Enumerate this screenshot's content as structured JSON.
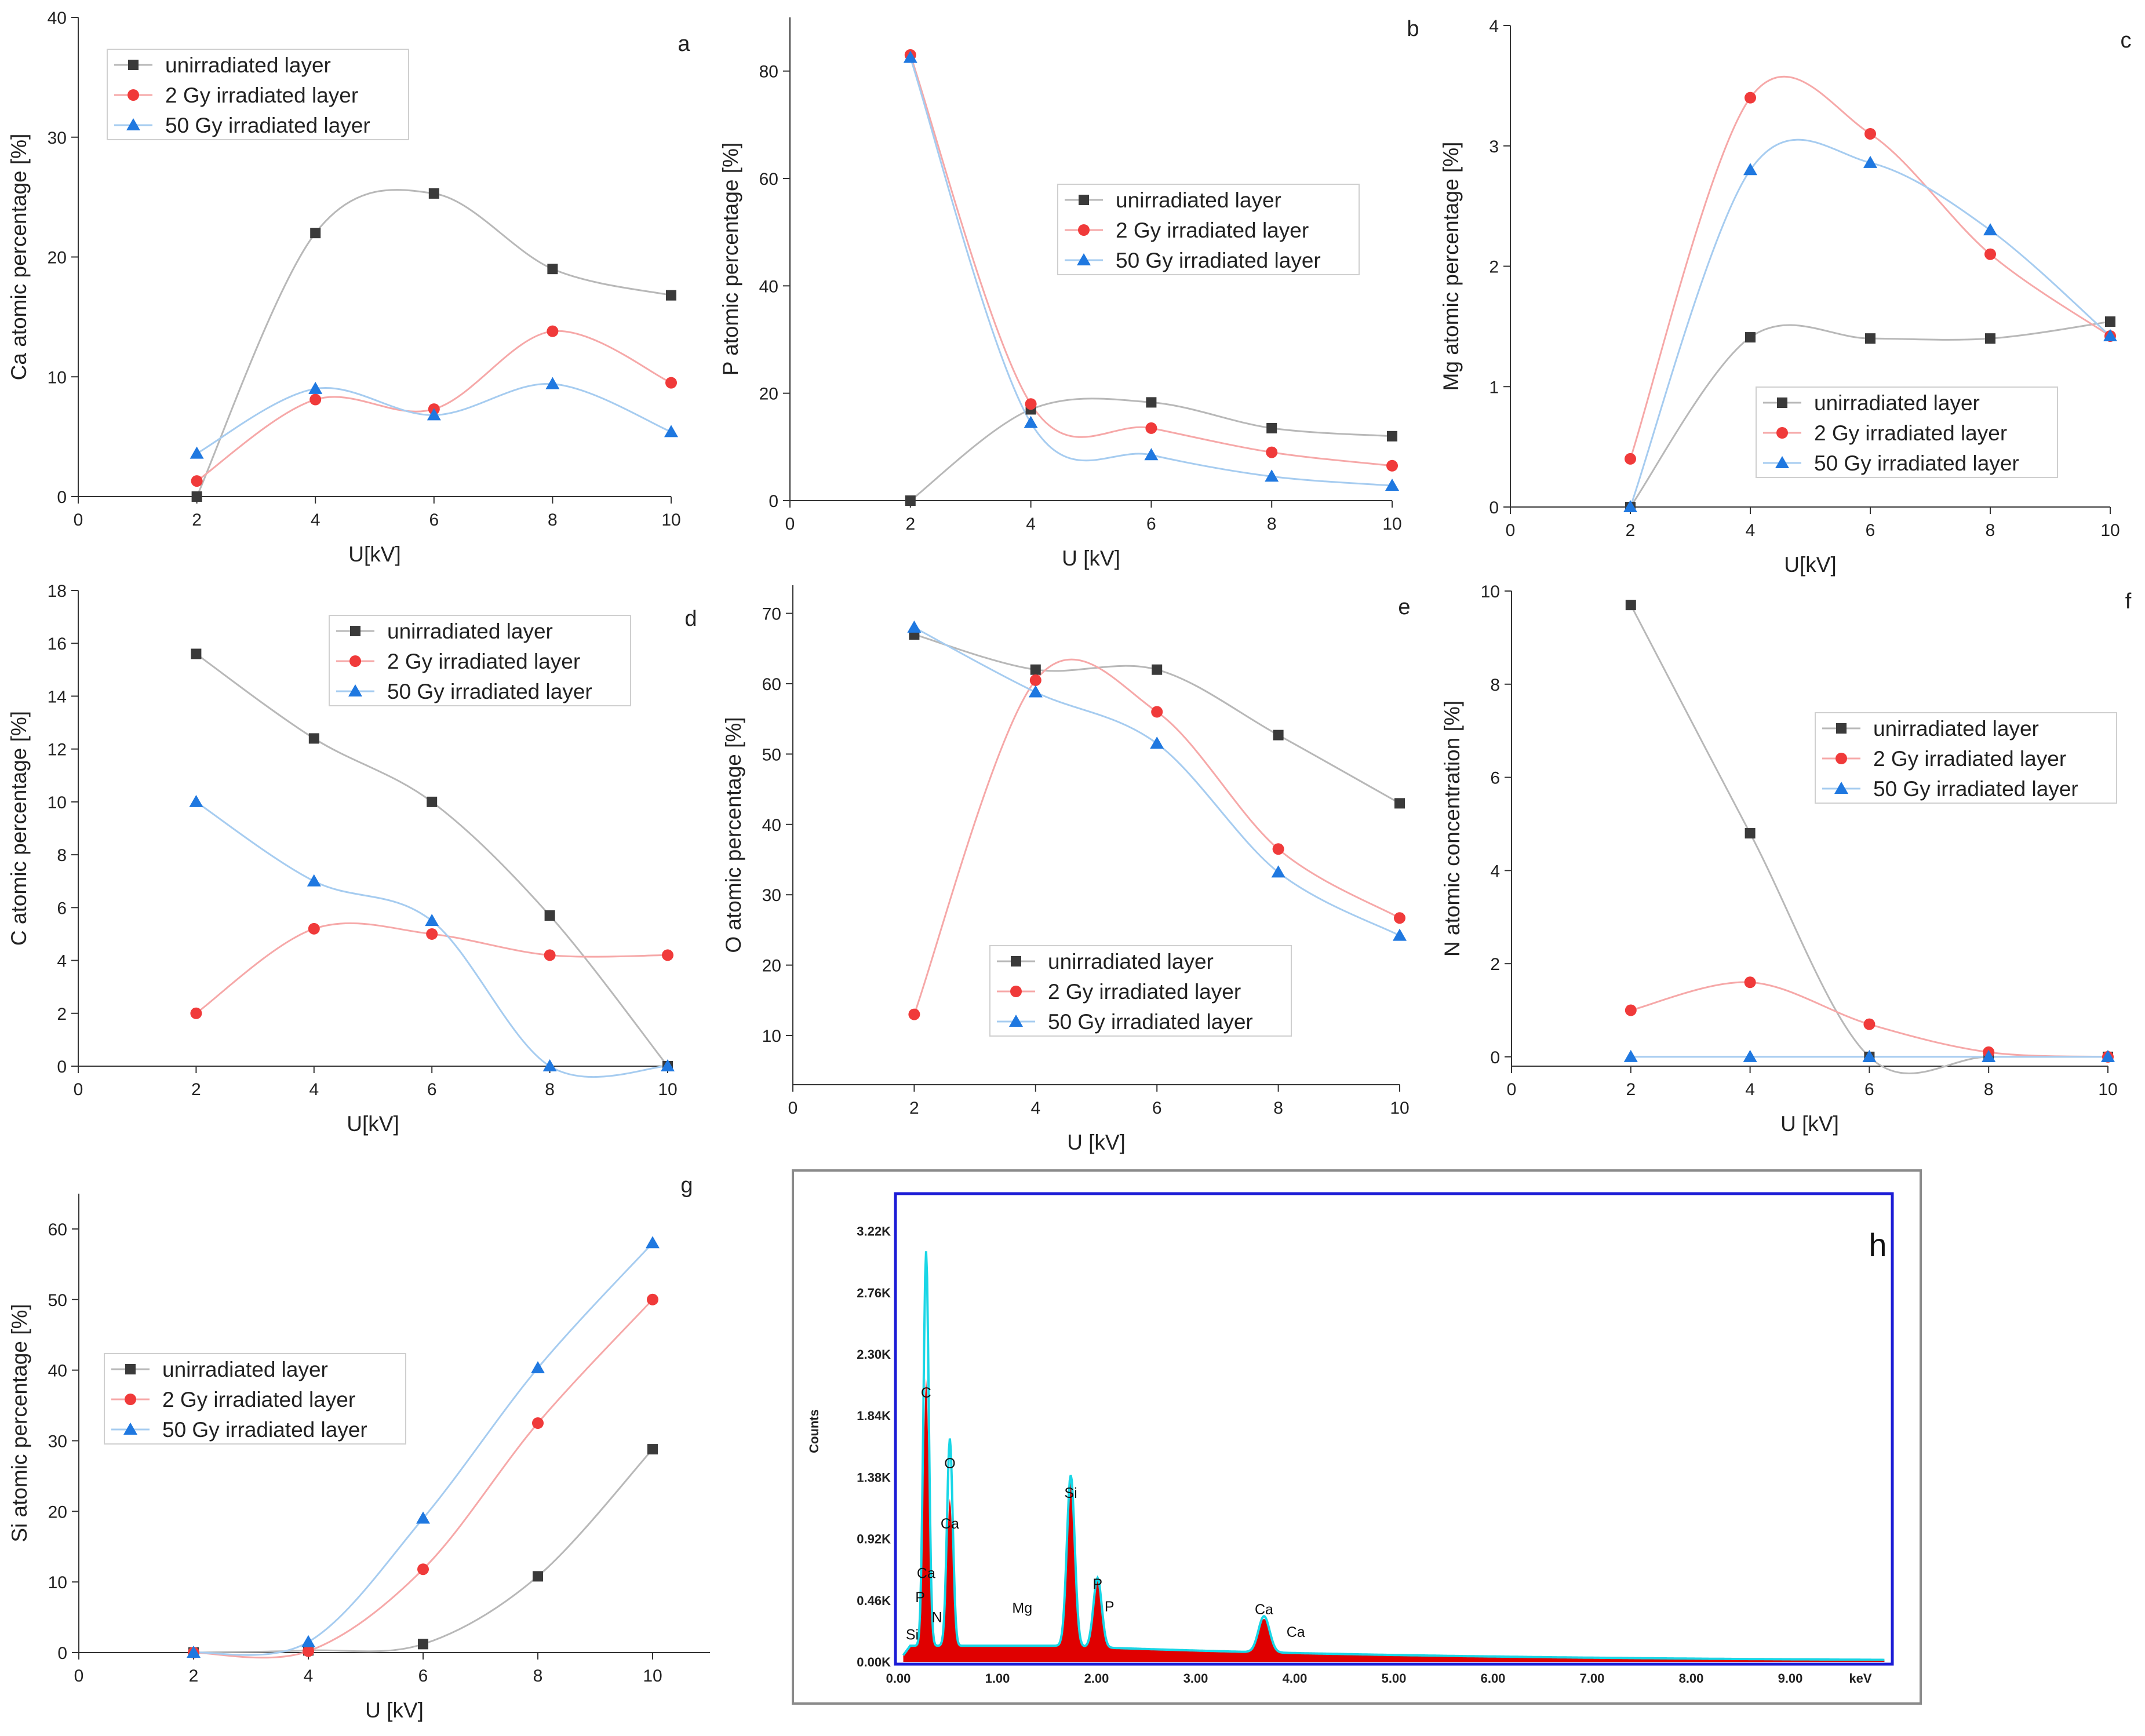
{
  "figure": {
    "series_names": [
      "unirradiated layer",
      "2 Gy irradiated layer",
      "50 Gy irradiated layer"
    ],
    "series_colors": [
      "#3a3a3a",
      "#f03a3a",
      "#1f78e0"
    ],
    "line_colors": [
      "#b8b8b8",
      "#f6a8a8",
      "#a6ccf0"
    ]
  },
  "chart_data": [
    {
      "type": "line",
      "panel": "a",
      "title": "a",
      "xlabel": "U[kV]",
      "ylabel": "Ca atomic percentage [%]",
      "xlim": [
        0,
        10
      ],
      "ylim": [
        0,
        40
      ],
      "xticks": [
        0,
        2,
        4,
        6,
        8,
        10
      ],
      "yticks": [
        0,
        10,
        20,
        30,
        40
      ],
      "x": [
        2,
        4,
        6,
        8,
        10
      ],
      "legend_position": "top-left",
      "series": [
        {
          "name": "unirradiated layer",
          "values": [
            0,
            22,
            25.3,
            19,
            16.8
          ]
        },
        {
          "name": "2 Gy irradiated layer",
          "values": [
            1.3,
            8.1,
            7.3,
            13.8,
            9.5
          ]
        },
        {
          "name": "50 Gy irradiated layer",
          "values": [
            3.6,
            9,
            6.8,
            9.4,
            5.4
          ]
        }
      ]
    },
    {
      "type": "line",
      "panel": "b",
      "title": "b",
      "xlabel": "U [kV]",
      "ylabel": "P atomic percentage [%]",
      "xlim": [
        0,
        10
      ],
      "ylim": [
        0,
        90
      ],
      "xticks": [
        0,
        2,
        4,
        6,
        8,
        10
      ],
      "yticks": [
        0,
        20,
        40,
        60,
        80
      ],
      "x": [
        2,
        4,
        6,
        8,
        10
      ],
      "legend_position": "top-right",
      "series": [
        {
          "name": "unirradiated layer",
          "values": [
            0,
            17,
            18.3,
            13.5,
            12
          ]
        },
        {
          "name": "2 Gy irradiated layer",
          "values": [
            83,
            18,
            13.5,
            9,
            6.5
          ]
        },
        {
          "name": "50 Gy irradiated layer",
          "values": [
            82.5,
            14.5,
            8.5,
            4.5,
            2.8
          ]
        }
      ]
    },
    {
      "type": "line",
      "panel": "c",
      "title": "c",
      "xlabel": "U[kV]",
      "ylabel": "Mg atomic percentage [%]",
      "xlim": [
        0,
        10
      ],
      "ylim": [
        0,
        4
      ],
      "xticks": [
        0,
        2,
        4,
        6,
        8,
        10
      ],
      "yticks": [
        0,
        1,
        2,
        3,
        4
      ],
      "x": [
        2,
        4,
        6,
        8,
        10
      ],
      "legend_position": "bottom-right",
      "series": [
        {
          "name": "unirradiated layer",
          "values": [
            0,
            1.41,
            1.4,
            1.4,
            1.54
          ]
        },
        {
          "name": "2 Gy irradiated layer",
          "values": [
            0.4,
            3.4,
            3.1,
            2.1,
            1.42
          ]
        },
        {
          "name": "50 Gy irradiated layer",
          "values": [
            0,
            2.8,
            2.86,
            2.3,
            1.42
          ]
        }
      ]
    },
    {
      "type": "line",
      "panel": "d",
      "title": "d",
      "xlabel": "U[kV]",
      "ylabel": "C atomic percentage [%]",
      "xlim": [
        0,
        10
      ],
      "ylim": [
        0,
        18
      ],
      "xticks": [
        0,
        2,
        4,
        6,
        8,
        10
      ],
      "yticks": [
        0,
        2,
        4,
        6,
        8,
        10,
        12,
        14,
        16,
        18
      ],
      "x": [
        2,
        4,
        6,
        8,
        10
      ],
      "legend_position": "top-right",
      "series": [
        {
          "name": "unirradiated layer",
          "values": [
            15.6,
            12.4,
            10,
            5.7,
            0
          ]
        },
        {
          "name": "2 Gy irradiated layer",
          "values": [
            2,
            5.2,
            5,
            4.2,
            4.2
          ]
        },
        {
          "name": "50 Gy irradiated layer",
          "values": [
            10,
            7,
            5.5,
            0,
            0
          ]
        }
      ]
    },
    {
      "type": "line",
      "panel": "e",
      "title": "e",
      "xlabel": "U [kV]",
      "ylabel": "O atomic percentage [%]",
      "xlim": [
        0,
        10
      ],
      "ylim": [
        3,
        74
      ],
      "xticks": [
        0,
        2,
        4,
        6,
        8,
        10
      ],
      "yticks": [
        10,
        20,
        30,
        40,
        50,
        60,
        70
      ],
      "x": [
        2,
        4,
        6,
        8,
        10
      ],
      "legend_position": "bottom-right",
      "series": [
        {
          "name": "unirradiated layer",
          "values": [
            67,
            62,
            62,
            52.7,
            43
          ]
        },
        {
          "name": "2 Gy irradiated layer",
          "values": [
            13,
            60.5,
            56,
            36.5,
            26.7
          ]
        },
        {
          "name": "50 Gy irradiated layer",
          "values": [
            68,
            58.8,
            51.5,
            33.2,
            24.2
          ]
        }
      ]
    },
    {
      "type": "line",
      "panel": "f",
      "title": "f",
      "xlabel": "U [kV]",
      "ylabel": "N atomic concentration [%]",
      "xlim": [
        0,
        10
      ],
      "ylim": [
        -0.2,
        10
      ],
      "xticks": [
        0,
        2,
        4,
        6,
        8,
        10
      ],
      "yticks": [
        0,
        2,
        4,
        6,
        8,
        10
      ],
      "x": [
        2,
        4,
        6,
        8,
        10
      ],
      "legend_position": "right",
      "series": [
        {
          "name": "unirradiated layer",
          "values": [
            9.7,
            4.8,
            0,
            0,
            0
          ]
        },
        {
          "name": "2 Gy irradiated layer",
          "values": [
            1,
            1.6,
            0.7,
            0.1,
            0
          ]
        },
        {
          "name": "50 Gy irradiated layer",
          "values": [
            0,
            0,
            0,
            0,
            0
          ]
        }
      ]
    },
    {
      "type": "line",
      "panel": "g",
      "title": "g",
      "xlabel": "U [kV]",
      "ylabel": "Si atomic percentage [%]",
      "xlim": [
        0,
        11
      ],
      "ylim": [
        0,
        65
      ],
      "xticks": [
        0,
        2,
        4,
        6,
        8,
        10
      ],
      "yticks": [
        0,
        10,
        20,
        30,
        40,
        50,
        60
      ],
      "x": [
        2,
        4,
        6,
        8,
        10
      ],
      "legend_position": "left",
      "series": [
        {
          "name": "unirradiated layer",
          "values": [
            0,
            0.3,
            1.2,
            10.8,
            28.8
          ]
        },
        {
          "name": "2 Gy irradiated layer",
          "values": [
            0,
            0.2,
            11.8,
            32.5,
            50
          ]
        },
        {
          "name": "50 Gy irradiated layer",
          "values": [
            0,
            1.5,
            19,
            40.3,
            58
          ]
        }
      ]
    },
    {
      "type": "area",
      "panel": "h",
      "title": "h",
      "xlabel": "keV",
      "ylabel": "Counts",
      "xlim": [
        0,
        10
      ],
      "ylim": [
        0,
        3.5
      ],
      "xticks": [
        "0.00",
        "1.00",
        "2.00",
        "3.00",
        "4.00",
        "5.00",
        "6.00",
        "7.00",
        "8.00",
        "9.00"
      ],
      "yticks": [
        "0.00K",
        "0.46K",
        "0.92K",
        "1.38K",
        "1.84K",
        "2.30K",
        "2.76K",
        "3.22K"
      ],
      "units": "thousand counts",
      "baseline": 0.12,
      "peaks_red": [
        {
          "label": "C",
          "energy": 0.28,
          "height": 2.0
        },
        {
          "label": "O",
          "energy": 0.52,
          "height": 1.1
        },
        {
          "label": "Si",
          "energy": 1.74,
          "height": 1.28
        },
        {
          "label": "P",
          "energy": 2.01,
          "height": 0.5
        },
        {
          "label": "Ca",
          "energy": 3.69,
          "height": 0.25
        }
      ],
      "peaks_cyan": [
        {
          "energy": 0.28,
          "height": 2.95
        },
        {
          "energy": 0.52,
          "height": 1.55
        },
        {
          "energy": 1.74,
          "height": 1.28
        },
        {
          "energy": 2.01,
          "height": 0.52
        },
        {
          "energy": 3.69,
          "height": 0.27
        }
      ],
      "peak_labels": [
        {
          "text": "C",
          "energy": 0.28,
          "level": 1.95
        },
        {
          "text": "O",
          "energy": 0.52,
          "level": 1.42
        },
        {
          "text": "Ca",
          "energy": 0.52,
          "level": 0.97
        },
        {
          "text": "Ca",
          "energy": 0.28,
          "level": 0.6
        },
        {
          "text": "P",
          "energy": 0.22,
          "level": 0.42
        },
        {
          "text": "N",
          "energy": 0.39,
          "level": 0.27
        },
        {
          "text": "Si",
          "energy": 0.14,
          "level": 0.14
        },
        {
          "text": "Mg",
          "energy": 1.25,
          "level": 0.34
        },
        {
          "text": "Si",
          "energy": 1.74,
          "level": 1.2
        },
        {
          "text": "P",
          "energy": 2.01,
          "level": 0.52
        },
        {
          "text": "P",
          "energy": 2.13,
          "level": 0.35
        },
        {
          "text": "Ca",
          "energy": 3.69,
          "level": 0.33
        },
        {
          "text": "Ca",
          "energy": 4.01,
          "level": 0.16
        }
      ]
    }
  ]
}
